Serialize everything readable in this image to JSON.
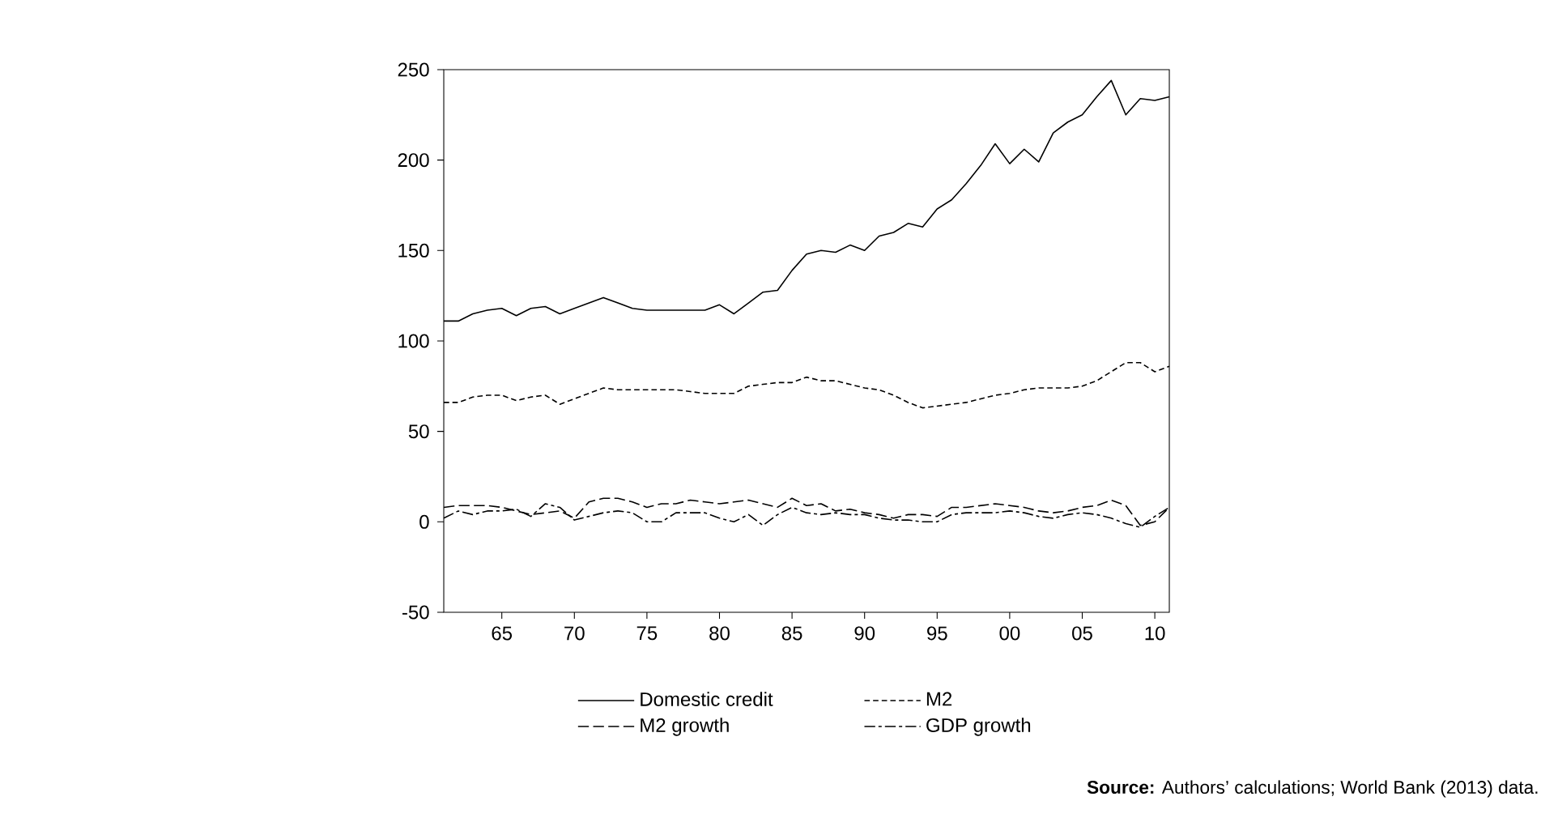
{
  "chart_data": {
    "type": "line",
    "x": [
      1961,
      1962,
      1963,
      1964,
      1965,
      1966,
      1967,
      1968,
      1969,
      1970,
      1971,
      1972,
      1973,
      1974,
      1975,
      1976,
      1977,
      1978,
      1979,
      1980,
      1981,
      1982,
      1983,
      1984,
      1985,
      1986,
      1987,
      1988,
      1989,
      1990,
      1991,
      1992,
      1993,
      1994,
      1995,
      1996,
      1997,
      1998,
      1999,
      2000,
      2001,
      2002,
      2003,
      2004,
      2005,
      2006,
      2007,
      2008,
      2009,
      2010,
      2011
    ],
    "series": [
      {
        "name": "Domestic credit",
        "color": "#000000",
        "line_style": "solid",
        "values": [
          111,
          111,
          115,
          117,
          118,
          114,
          118,
          119,
          115,
          118,
          121,
          124,
          121,
          118,
          117,
          117,
          117,
          117,
          117,
          120,
          115,
          121,
          127,
          128,
          139,
          148,
          150,
          149,
          153,
          150,
          158,
          160,
          165,
          163,
          173,
          178,
          187,
          197,
          209,
          198,
          206,
          199,
          215,
          221,
          225,
          235,
          244,
          225,
          234,
          233,
          235
        ]
      },
      {
        "name": "M2",
        "color": "#000000",
        "line_style": "dashed",
        "values": [
          66,
          66,
          69,
          70,
          70,
          67,
          69,
          70,
          65,
          68,
          71,
          74,
          73,
          73,
          73,
          73,
          73,
          72,
          71,
          71,
          71,
          75,
          76,
          77,
          77,
          80,
          78,
          78,
          76,
          74,
          73,
          70,
          66,
          63,
          64,
          65,
          66,
          68,
          70,
          71,
          73,
          74,
          74,
          74,
          75,
          78,
          83,
          88,
          88,
          83,
          86
        ]
      },
      {
        "name": "M2 growth",
        "color": "#000000",
        "line_style": "longdash",
        "values": [
          8,
          9,
          9,
          9,
          8,
          6,
          4,
          5,
          6,
          2,
          11,
          13,
          13,
          11,
          8,
          10,
          10,
          12,
          11,
          10,
          11,
          12,
          10,
          8,
          13,
          9,
          10,
          6,
          7,
          5,
          4,
          2,
          4,
          4,
          3,
          8,
          8,
          9,
          10,
          9,
          8,
          6,
          5,
          6,
          8,
          9,
          12,
          9,
          -2,
          0,
          8
        ]
      },
      {
        "name": "GDP growth",
        "color": "#000000",
        "line_style": "dashdot",
        "values": [
          2,
          6,
          4,
          6,
          6,
          7,
          3,
          10,
          8,
          1,
          3,
          5,
          6,
          5,
          0,
          0,
          5,
          5,
          5,
          2,
          0,
          4,
          -2,
          4,
          8,
          5,
          4,
          5,
          4,
          4,
          2,
          1,
          1,
          0,
          0,
          4,
          5,
          5,
          5,
          6,
          5,
          3,
          2,
          4,
          5,
          4,
          2,
          -1,
          -3,
          3,
          8
        ]
      }
    ],
    "xlim": [
      1961,
      2011
    ],
    "xticks": [
      {
        "value": 1965,
        "label": "65"
      },
      {
        "value": 1970,
        "label": "70"
      },
      {
        "value": 1975,
        "label": "75"
      },
      {
        "value": 1980,
        "label": "80"
      },
      {
        "value": 1985,
        "label": "85"
      },
      {
        "value": 1990,
        "label": "90"
      },
      {
        "value": 1995,
        "label": "95"
      },
      {
        "value": 2000,
        "label": "00"
      },
      {
        "value": 2005,
        "label": "05"
      },
      {
        "value": 2010,
        "label": "10"
      }
    ],
    "ylim": [
      -50,
      250
    ],
    "yticks": [
      -50,
      0,
      50,
      100,
      150,
      200,
      250
    ],
    "grid": false,
    "legend": "bottom",
    "annotations": [
      "**Source:** Authors’ calculations; World Bank (2013) data."
    ]
  }
}
